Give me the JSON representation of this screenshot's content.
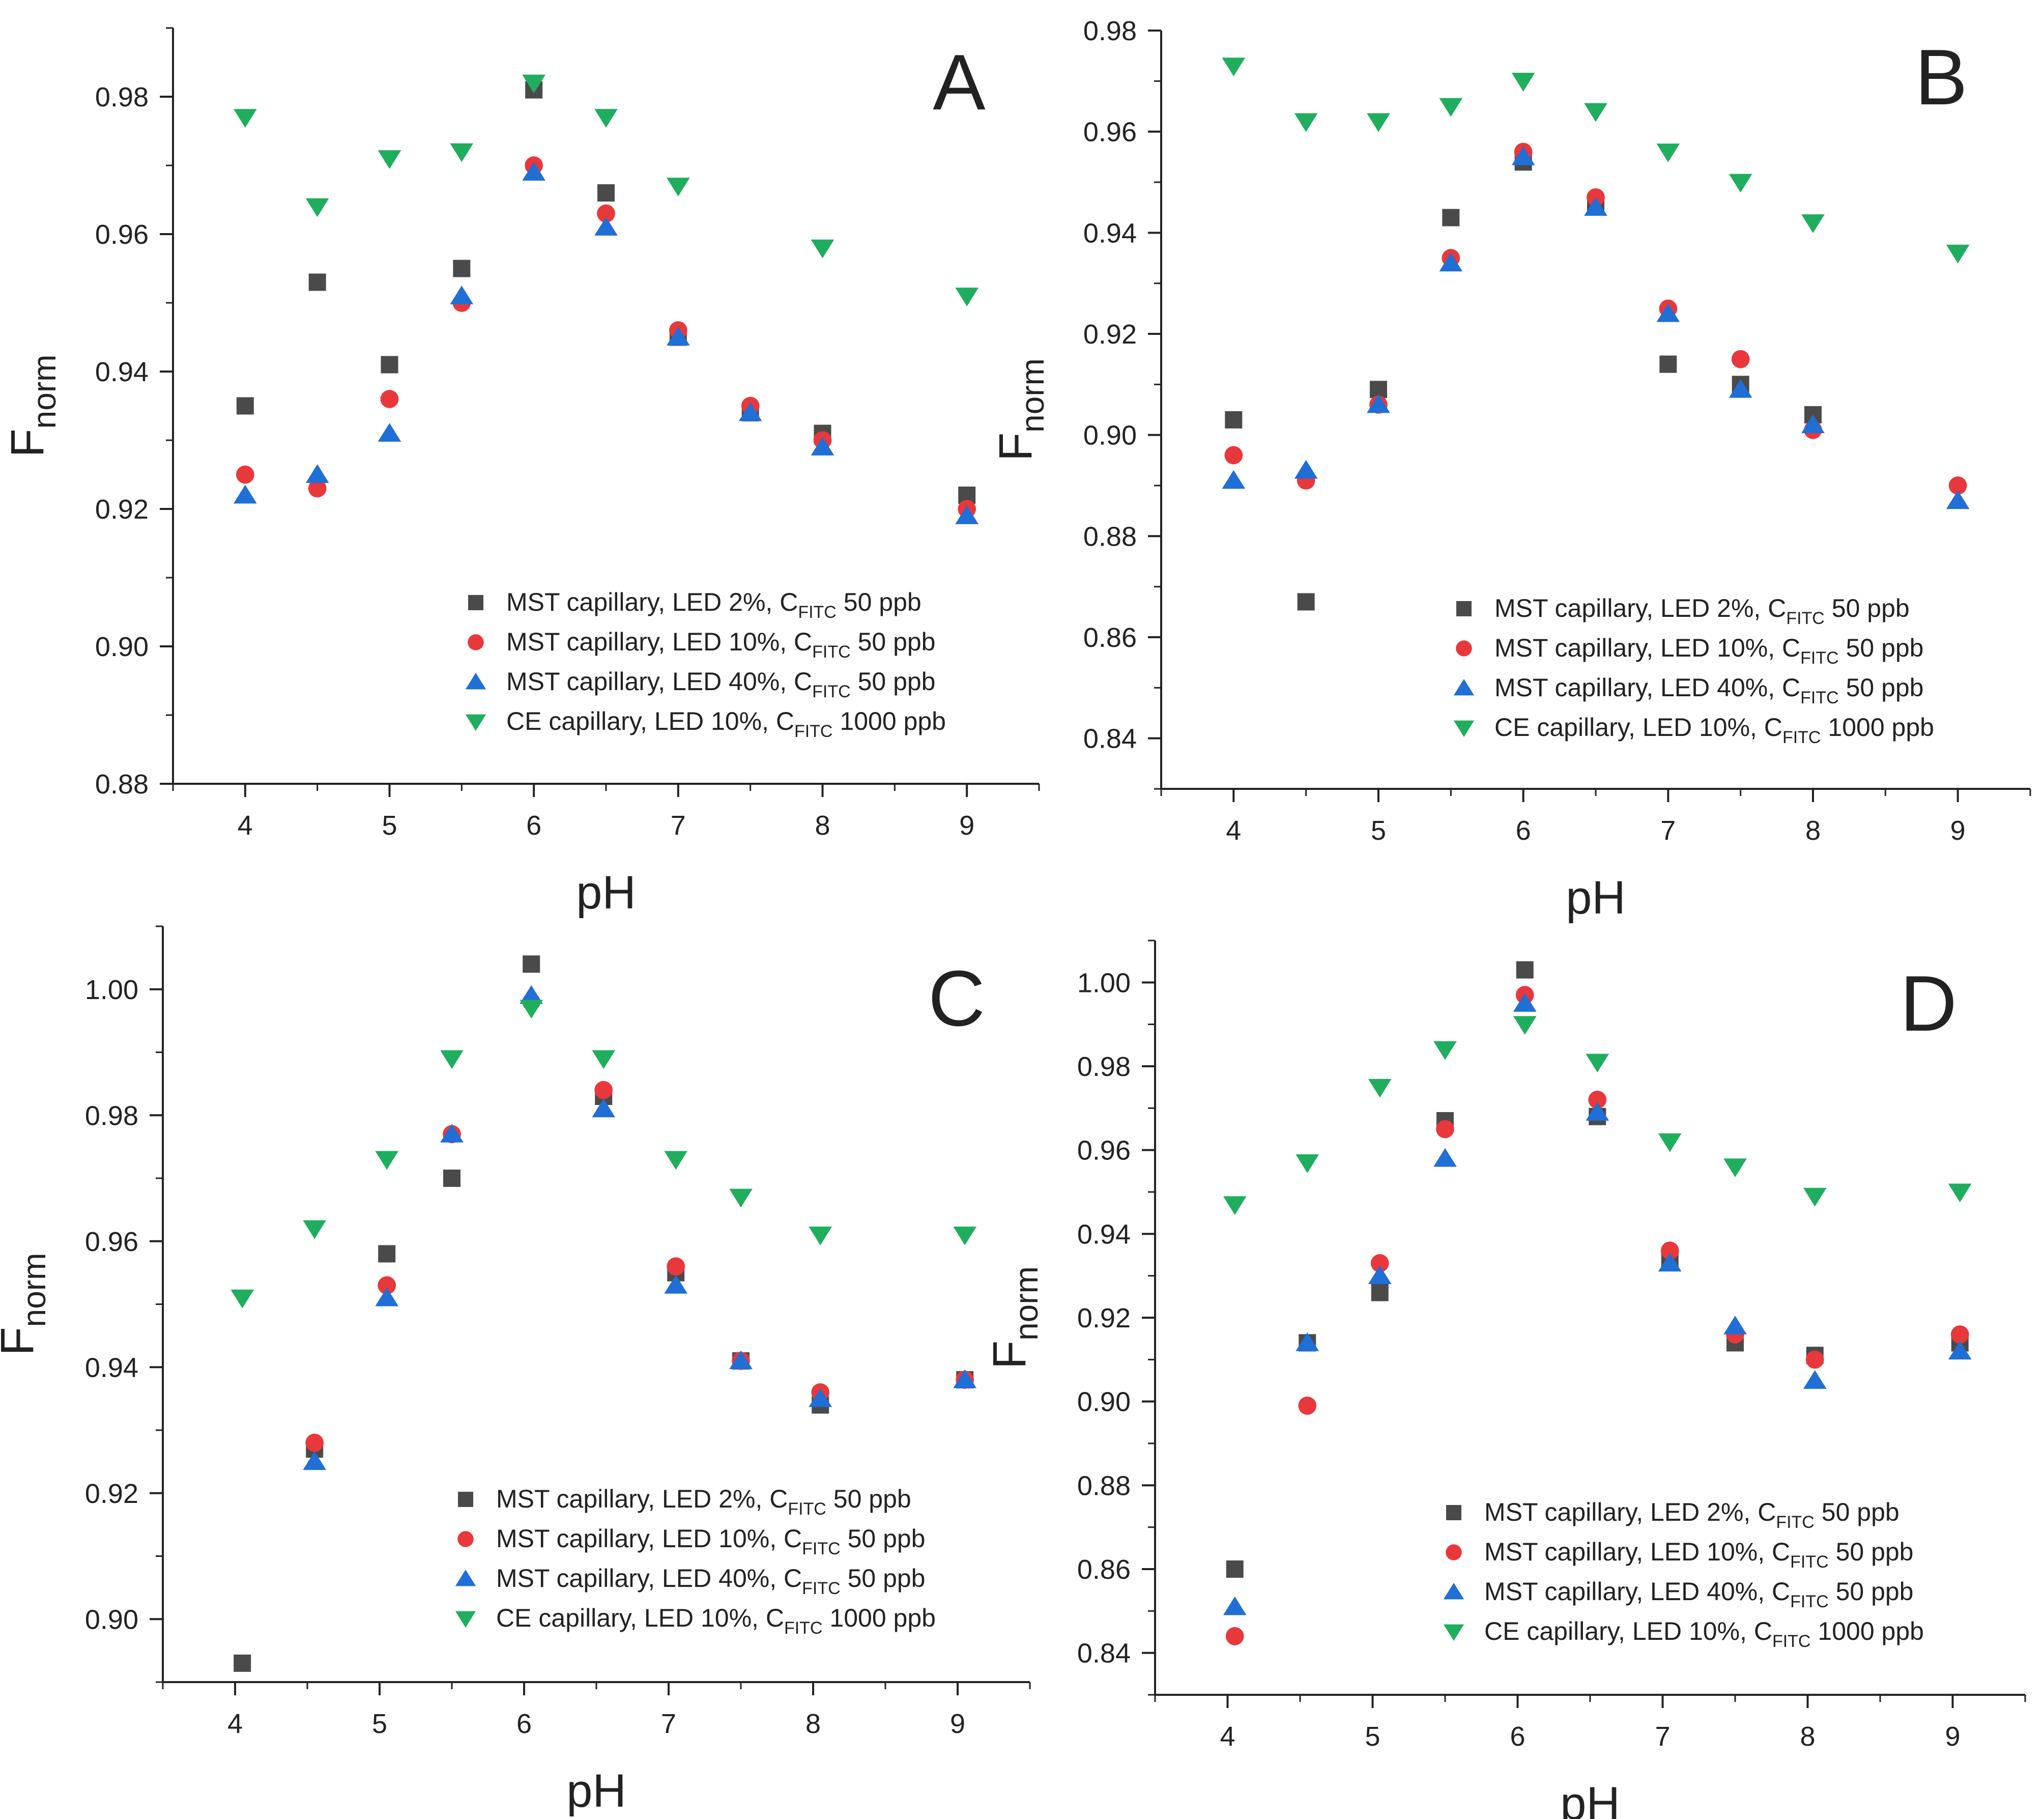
{
  "series_styles": [
    {
      "marker": "square",
      "color": "#4a4a4a"
    },
    {
      "marker": "circle",
      "color": "#e8383b"
    },
    {
      "marker": "triangle-up",
      "color": "#1f6fd6"
    },
    {
      "marker": "triangle-down",
      "color": "#1fae5e"
    }
  ],
  "chart_data": [
    {
      "panel": "A",
      "type": "scatter",
      "xlabel": "pH",
      "ylabel_main": "F",
      "ylabel_sub": "norm",
      "xlim": [
        3.5,
        9.5
      ],
      "ylim": [
        0.88,
        0.99
      ],
      "xticks": [
        "4",
        "5",
        "6",
        "7",
        "8",
        "9"
      ],
      "yticks": [
        "0.88",
        "0.90",
        "0.92",
        "0.94",
        "0.96",
        "0.98"
      ],
      "grid": false,
      "legend_position": "bottom-right",
      "legend": [
        {
          "pre": "MST capillary, LED 2%, C",
          "sub": "FITC",
          "post": " 50 ppb"
        },
        {
          "pre": "MST capillary, LED 10%, C",
          "sub": "FITC",
          "post": " 50 ppb"
        },
        {
          "pre": "MST capillary, LED 40%, C",
          "sub": "FITC",
          "post": " 50 ppb"
        },
        {
          "pre": "CE capillary, LED 10%, C",
          "sub": "FITC",
          "post": " 1000 ppb"
        }
      ],
      "series": [
        {
          "x": [
            4,
            4.5,
            5,
            5.5,
            6,
            6.5,
            7,
            7.5,
            8,
            9
          ],
          "y": [
            0.935,
            0.953,
            0.941,
            0.955,
            0.981,
            0.966,
            0.945,
            0.934,
            0.931,
            0.922
          ]
        },
        {
          "x": [
            4,
            4.5,
            5,
            5.5,
            6,
            6.5,
            7,
            7.5,
            8,
            9
          ],
          "y": [
            0.925,
            0.923,
            0.936,
            0.95,
            0.97,
            0.963,
            0.946,
            0.935,
            0.93,
            0.92
          ]
        },
        {
          "x": [
            4,
            4.5,
            5,
            5.5,
            6,
            6.5,
            7,
            7.5,
            8,
            9
          ],
          "y": [
            0.922,
            0.925,
            0.931,
            0.951,
            0.969,
            0.961,
            0.945,
            0.934,
            0.929,
            0.919
          ]
        },
        {
          "x": [
            4,
            4.5,
            5,
            5.5,
            6,
            6.5,
            7,
            8,
            9
          ],
          "y": [
            0.977,
            0.964,
            0.971,
            0.972,
            0.982,
            0.977,
            0.967,
            0.958,
            0.951
          ]
        }
      ]
    },
    {
      "panel": "B",
      "type": "scatter",
      "xlabel": "pH",
      "ylabel_main": "F",
      "ylabel_sub": "norm",
      "xlim": [
        3.5,
        9.5
      ],
      "ylim": [
        0.83,
        0.98
      ],
      "xticks": [
        "4",
        "5",
        "6",
        "7",
        "8",
        "9"
      ],
      "yticks": [
        "0.84",
        "0.86",
        "0.88",
        "0.90",
        "0.92",
        "0.94",
        "0.96",
        "0.98"
      ],
      "grid": false,
      "legend_position": "bottom-right",
      "legend": [
        {
          "pre": "MST capillary, LED 2%, C",
          "sub": "FITC",
          "post": " 50 ppb"
        },
        {
          "pre": "MST capillary, LED 10%, C",
          "sub": "FITC",
          "post": " 50 ppb"
        },
        {
          "pre": "MST capillary, LED 40%, C",
          "sub": "FITC",
          "post": " 50 ppb"
        },
        {
          "pre": "CE capillary, LED 10%, C",
          "sub": "FITC",
          "post": " 1000 ppb"
        }
      ],
      "series": [
        {
          "x": [
            4,
            4.5,
            5,
            5.5,
            6,
            6.5,
            7,
            7.5,
            8
          ],
          "y": [
            0.903,
            0.867,
            0.909,
            0.943,
            0.954,
            0.946,
            0.914,
            0.91,
            0.904
          ]
        },
        {
          "x": [
            4,
            4.5,
            5,
            5.5,
            6,
            6.5,
            7,
            7.5,
            8,
            9
          ],
          "y": [
            0.896,
            0.891,
            0.906,
            0.935,
            0.956,
            0.947,
            0.925,
            0.915,
            0.901,
            0.89
          ]
        },
        {
          "x": [
            4,
            4.5,
            5,
            5.5,
            6,
            6.5,
            7,
            7.5,
            8,
            9
          ],
          "y": [
            0.891,
            0.893,
            0.906,
            0.934,
            0.955,
            0.945,
            0.924,
            0.909,
            0.902,
            0.887
          ]
        },
        {
          "x": [
            4,
            4.5,
            5,
            5.5,
            6,
            6.5,
            7,
            7.5,
            8,
            9
          ],
          "y": [
            0.973,
            0.962,
            0.962,
            0.965,
            0.97,
            0.964,
            0.956,
            0.95,
            0.942,
            0.936
          ]
        }
      ]
    },
    {
      "panel": "C",
      "type": "scatter",
      "xlabel": "pH",
      "ylabel_main": "F",
      "ylabel_sub": "norm",
      "xlim": [
        3.5,
        9.5
      ],
      "ylim": [
        0.89,
        1.01
      ],
      "xticks": [
        "4",
        "5",
        "6",
        "7",
        "8",
        "9"
      ],
      "yticks": [
        "0.90",
        "0.92",
        "0.94",
        "0.96",
        "0.98",
        "1.00"
      ],
      "grid": false,
      "legend_position": "bottom-right",
      "legend": [
        {
          "pre": "MST capillary, LED 2%, C",
          "sub": "FITC",
          "post": " 50 ppb"
        },
        {
          "pre": "MST capillary, LED 10%, C",
          "sub": "FITC",
          "post": " 50 ppb"
        },
        {
          "pre": "MST capillary, LED 40%, C",
          "sub": "FITC",
          "post": " 50 ppb"
        },
        {
          "pre": "CE capillary, LED 10%, C",
          "sub": "FITC",
          "post": " 1000 ppb"
        }
      ],
      "series": [
        {
          "x": [
            4.05,
            4.55,
            5.05,
            5.5,
            6.05,
            6.55,
            7.05,
            7.5,
            8.05,
            9.05
          ],
          "y": [
            0.893,
            0.927,
            0.958,
            0.97,
            1.004,
            0.983,
            0.955,
            0.941,
            0.934,
            0.938
          ]
        },
        {
          "x": [
            4.55,
            5.05,
            5.5,
            6.05,
            6.55,
            7.05,
            7.5,
            8.05,
            9.05
          ],
          "y": [
            0.928,
            0.953,
            0.977,
            0.998,
            0.984,
            0.956,
            0.941,
            0.936,
            0.938
          ]
        },
        {
          "x": [
            4.55,
            5.05,
            5.5,
            6.05,
            6.55,
            7.05,
            7.5,
            8.05,
            9.05
          ],
          "y": [
            0.925,
            0.951,
            0.977,
            0.999,
            0.981,
            0.953,
            0.941,
            0.935,
            0.938
          ]
        },
        {
          "x": [
            4.05,
            4.55,
            5.05,
            5.5,
            6.05,
            6.55,
            7.05,
            7.5,
            8.05,
            9.05
          ],
          "y": [
            0.951,
            0.962,
            0.973,
            0.989,
            0.997,
            0.989,
            0.973,
            0.967,
            0.961,
            0.961
          ]
        }
      ]
    },
    {
      "panel": "D",
      "type": "scatter",
      "xlabel": "pH",
      "ylabel_main": "F",
      "ylabel_sub": "norm",
      "xlim": [
        3.5,
        9.5
      ],
      "ylim": [
        0.83,
        1.01
      ],
      "xticks": [
        "4",
        "5",
        "6",
        "7",
        "8",
        "9"
      ],
      "yticks": [
        "0.84",
        "0.86",
        "0.88",
        "0.90",
        "0.92",
        "0.94",
        "0.96",
        "0.98",
        "1.00"
      ],
      "grid": false,
      "legend_position": "bottom-right",
      "legend": [
        {
          "pre": "MST capillary, LED 2%, C",
          "sub": "FITC",
          "post": " 50 ppb"
        },
        {
          "pre": "MST capillary, LED 10%, C",
          "sub": "FITC",
          "post": " 50 ppb"
        },
        {
          "pre": "MST capillary, LED 40%, C",
          "sub": "FITC",
          "post": " 50 ppb"
        },
        {
          "pre": "CE capillary, LED 10%, C",
          "sub": "FITC",
          "post": " 1000 ppb"
        }
      ],
      "series": [
        {
          "x": [
            4.05,
            4.55,
            5.05,
            5.5,
            6.05,
            6.55,
            7.05,
            7.5,
            8.05,
            9.05
          ],
          "y": [
            0.86,
            0.914,
            0.926,
            0.967,
            1.003,
            0.968,
            0.934,
            0.914,
            0.911,
            0.914
          ]
        },
        {
          "x": [
            4.05,
            4.55,
            5.05,
            5.5,
            6.05,
            6.55,
            7.05,
            7.5,
            8.05,
            9.05
          ],
          "y": [
            0.844,
            0.899,
            0.933,
            0.965,
            0.997,
            0.972,
            0.936,
            0.916,
            0.91,
            0.916
          ]
        },
        {
          "x": [
            4.05,
            4.55,
            5.05,
            5.5,
            6.05,
            6.55,
            7.05,
            7.5,
            8.05,
            9.05
          ],
          "y": [
            0.851,
            0.914,
            0.93,
            0.958,
            0.995,
            0.969,
            0.933,
            0.918,
            0.905,
            0.912
          ]
        },
        {
          "x": [
            4.05,
            4.55,
            5.05,
            5.5,
            6.05,
            6.55,
            7.05,
            7.5,
            8.05,
            9.05
          ],
          "y": [
            0.947,
            0.957,
            0.975,
            0.984,
            0.99,
            0.981,
            0.962,
            0.956,
            0.949,
            0.95
          ]
        }
      ]
    }
  ]
}
